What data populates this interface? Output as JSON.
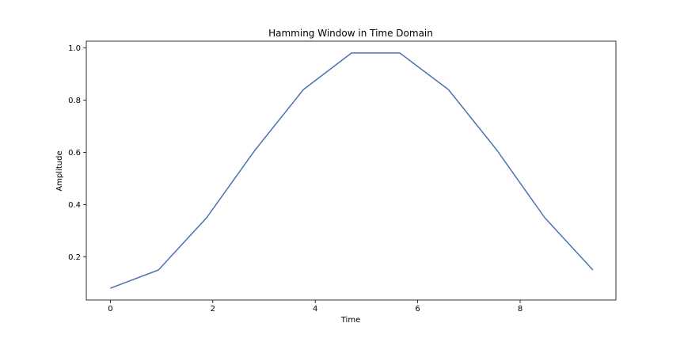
{
  "chart_data": {
    "type": "line",
    "title": "Hamming Window in Time Domain",
    "xlabel": "Time",
    "ylabel": "Amplitude",
    "xlim": [
      -0.47,
      9.87
    ],
    "ylim": [
      0.035,
      1.025
    ],
    "xticks": [
      0,
      2,
      4,
      6,
      8
    ],
    "yticks": [
      0.2,
      0.4,
      0.6,
      0.8,
      1.0
    ],
    "ytick_labels": [
      "0.2",
      "0.4",
      "0.6",
      "0.8",
      "1.0"
    ],
    "grid": false,
    "series": [
      {
        "color": "#4c72b0",
        "x": [
          0,
          0.94,
          1.88,
          2.83,
          3.77,
          4.71,
          5.65,
          6.6,
          7.54,
          8.48,
          9.42
        ],
        "y": [
          0.08,
          0.15,
          0.35,
          0.61,
          0.84,
          0.98,
          0.98,
          0.84,
          0.61,
          0.35,
          0.15
        ]
      }
    ]
  }
}
